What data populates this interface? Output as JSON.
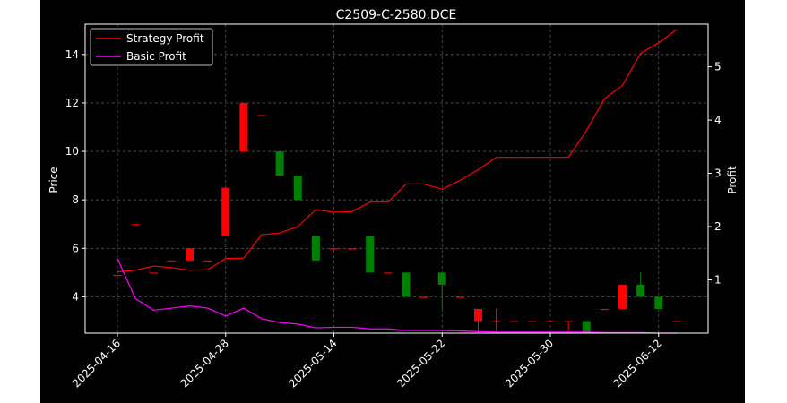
{
  "chart_data": {
    "type": "candlestick",
    "title": "C2509-C-2580.DCE",
    "ylabel_left": "Price",
    "ylabel_right": "Profit",
    "ylim_left": [
      2.5,
      15.25
    ],
    "ylim_right": [
      0.0,
      5.8
    ],
    "yticks_left": [
      4,
      6,
      8,
      10,
      12,
      14
    ],
    "yticks_right": [
      1,
      2,
      3,
      4,
      5
    ],
    "xtick_labels": [
      "2025-04-16",
      "2025-04-28",
      "2025-05-14",
      "2025-05-22",
      "2025-05-30",
      "2025-06-12"
    ],
    "xtick_index": [
      0,
      6,
      12,
      18,
      24,
      30
    ],
    "grid": true,
    "legend_position": "top-left",
    "colors": {
      "up": "#ff0000",
      "down": "#008000",
      "strategy": "#ff0000",
      "basic": "#ff00ff",
      "background": "#000000",
      "grid": "#555555"
    },
    "candles": [
      {
        "o": 4.9,
        "h": 4.9,
        "l": 4.9,
        "c": 4.9
      },
      {
        "o": 7.0,
        "h": 7.0,
        "l": 7.0,
        "c": 7.0
      },
      {
        "o": 5.0,
        "h": 5.0,
        "l": 5.0,
        "c": 5.0
      },
      {
        "o": 5.5,
        "h": 5.5,
        "l": 5.5,
        "c": 5.5
      },
      {
        "o": 5.5,
        "h": 6.0,
        "l": 5.5,
        "c": 6.0
      },
      {
        "o": 5.5,
        "h": 5.5,
        "l": 5.5,
        "c": 5.5
      },
      {
        "o": 6.5,
        "h": 8.5,
        "l": 6.5,
        "c": 8.5
      },
      {
        "o": 10.0,
        "h": 12.0,
        "l": 10.0,
        "c": 12.0
      },
      {
        "o": 11.5,
        "h": 11.5,
        "l": 11.5,
        "c": 11.5
      },
      {
        "o": 10.0,
        "h": 10.0,
        "l": 9.0,
        "c": 9.0
      },
      {
        "o": 9.0,
        "h": 9.0,
        "l": 8.0,
        "c": 8.0
      },
      {
        "o": 6.5,
        "h": 6.5,
        "l": 5.5,
        "c": 5.5
      },
      {
        "o": 6.0,
        "h": 6.0,
        "l": 6.0,
        "c": 6.0
      },
      {
        "o": 6.0,
        "h": 6.0,
        "l": 6.0,
        "c": 6.0
      },
      {
        "o": 6.5,
        "h": 6.5,
        "l": 5.0,
        "c": 5.0
      },
      {
        "o": 5.0,
        "h": 5.0,
        "l": 5.0,
        "c": 5.0
      },
      {
        "o": 5.0,
        "h": 5.0,
        "l": 4.0,
        "c": 4.0
      },
      {
        "o": 4.0,
        "h": 4.0,
        "l": 4.0,
        "c": 4.0
      },
      {
        "o": 5.0,
        "h": 5.0,
        "l": 3.5,
        "c": 4.5
      },
      {
        "o": 4.0,
        "h": 4.0,
        "l": 4.0,
        "c": 4.0
      },
      {
        "o": 3.0,
        "h": 3.5,
        "l": 2.5,
        "c": 3.5
      },
      {
        "o": 3.0,
        "h": 3.5,
        "l": 2.5,
        "c": 3.0
      },
      {
        "o": 3.0,
        "h": 3.0,
        "l": 3.0,
        "c": 3.0
      },
      {
        "o": 3.0,
        "h": 3.0,
        "l": 3.0,
        "c": 3.0
      },
      {
        "o": 3.0,
        "h": 3.0,
        "l": 3.0,
        "c": 3.0
      },
      {
        "o": 3.0,
        "h": 3.0,
        "l": 2.5,
        "c": 3.0
      },
      {
        "o": 3.0,
        "h": 3.0,
        "l": 2.5,
        "c": 2.5
      },
      {
        "o": 3.5,
        "h": 3.5,
        "l": 3.5,
        "c": 3.5
      },
      {
        "o": 3.5,
        "h": 4.5,
        "l": 3.5,
        "c": 4.5
      },
      {
        "o": 4.5,
        "h": 5.0,
        "l": 4.0,
        "c": 4.0
      },
      {
        "o": 4.0,
        "h": 4.0,
        "l": 3.5,
        "c": 3.5
      },
      {
        "o": 3.0,
        "h": 3.0,
        "l": 3.0,
        "c": 3.0
      }
    ],
    "series": [
      {
        "name": "Strategy Profit",
        "axis": "right",
        "color": "#ff0000",
        "values": [
          1.15,
          1.18,
          1.26,
          1.23,
          1.18,
          1.19,
          1.4,
          1.41,
          1.85,
          1.88,
          2.0,
          2.32,
          2.27,
          2.28,
          2.46,
          2.46,
          2.8,
          2.8,
          2.7,
          2.87,
          3.07,
          3.3,
          3.3,
          3.3,
          3.3,
          3.3,
          3.8,
          4.4,
          4.65,
          5.25,
          5.45,
          5.7
        ]
      },
      {
        "name": "Basic Profit",
        "axis": "right",
        "color": "#ff00ff",
        "values": [
          1.4,
          0.65,
          0.43,
          0.47,
          0.51,
          0.47,
          0.32,
          0.47,
          0.27,
          0.2,
          0.17,
          0.1,
          0.11,
          0.11,
          0.08,
          0.08,
          0.05,
          0.05,
          0.05,
          0.04,
          0.03,
          0.02,
          0.02,
          0.02,
          0.02,
          0.02,
          0.02,
          0.01,
          0.01,
          0.01,
          0.0,
          0.0
        ]
      }
    ]
  }
}
